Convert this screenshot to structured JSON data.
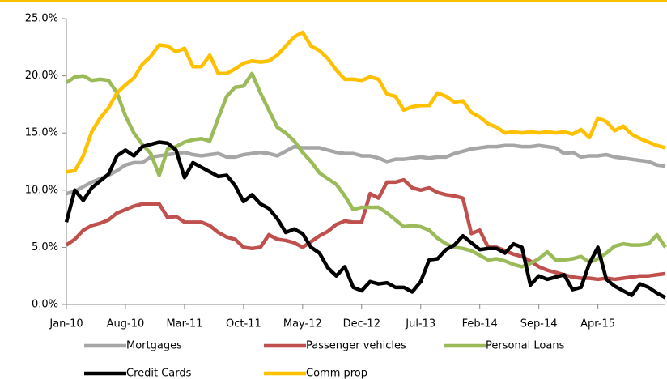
{
  "chart_data": {
    "type": "line",
    "categories": [
      "Jan-10",
      null,
      null,
      null,
      null,
      null,
      null,
      "Aug-10",
      null,
      null,
      null,
      null,
      null,
      null,
      "Mar-11",
      null,
      null,
      null,
      null,
      null,
      null,
      "Oct-11",
      null,
      null,
      null,
      null,
      null,
      null,
      "May-12",
      null,
      null,
      null,
      null,
      null,
      null,
      "Dec-12",
      null,
      null,
      null,
      null,
      null,
      null,
      "Jul-13",
      null,
      null,
      null,
      null,
      null,
      null,
      "Feb-14",
      null,
      null,
      null,
      null,
      null,
      null,
      "Sep-14",
      null,
      null,
      null,
      null,
      null,
      null,
      "Apr-15",
      null,
      null,
      null,
      null,
      null,
      null,
      null,
      null
    ],
    "ylim": [
      0,
      25
    ],
    "yticks": [
      {
        "value": 0,
        "label": "0.0%"
      },
      {
        "value": 5,
        "label": "5.0%"
      },
      {
        "value": 10,
        "label": "10.0%"
      },
      {
        "value": 15,
        "label": "15.0%"
      },
      {
        "value": 20,
        "label": "20.0%"
      },
      {
        "value": 25,
        "label": "25.0%"
      }
    ],
    "series": [
      {
        "name": "Mortgages",
        "color": "#a6a6a6",
        "values": [
          9.7,
          9.9,
          10.3,
          10.7,
          11.0,
          11.3,
          11.7,
          12.2,
          12.4,
          12.4,
          12.9,
          13.0,
          13.1,
          13.2,
          13.3,
          13.1,
          13.0,
          13.1,
          13.2,
          12.9,
          12.9,
          13.1,
          13.2,
          13.3,
          13.2,
          13.0,
          13.4,
          13.8,
          13.7,
          13.7,
          13.7,
          13.5,
          13.3,
          13.2,
          13.2,
          13.0,
          13.0,
          12.8,
          12.5,
          12.7,
          12.7,
          12.8,
          12.9,
          12.8,
          12.9,
          12.9,
          13.2,
          13.4,
          13.6,
          13.7,
          13.8,
          13.8,
          13.9,
          13.9,
          13.8,
          13.8,
          13.9,
          13.8,
          13.7,
          13.2,
          13.3,
          12.9,
          13.0,
          13.0,
          13.1,
          12.9,
          12.8,
          12.7,
          12.6,
          12.5,
          12.2,
          12.1
        ]
      },
      {
        "name": "Passenger vehicles",
        "color": "#c0504d",
        "values": [
          5.2,
          5.7,
          6.5,
          6.9,
          7.1,
          7.4,
          8.0,
          8.3,
          8.6,
          8.8,
          8.8,
          8.8,
          7.6,
          7.7,
          7.2,
          7.2,
          7.2,
          6.9,
          6.3,
          5.9,
          5.7,
          5.0,
          4.9,
          5.0,
          6.1,
          5.7,
          5.6,
          5.4,
          5.0,
          5.5,
          6.0,
          6.4,
          7.0,
          7.3,
          7.2,
          7.2,
          9.7,
          9.3,
          10.7,
          10.7,
          10.9,
          10.2,
          10.0,
          10.2,
          9.8,
          9.6,
          9.5,
          9.3,
          6.2,
          6.5,
          5.0,
          5.0,
          4.7,
          4.4,
          4.2,
          3.8,
          3.3,
          3.0,
          2.8,
          2.6,
          2.4,
          2.3,
          2.3,
          2.2,
          2.3,
          2.2,
          2.3,
          2.4,
          2.5,
          2.5,
          2.6,
          2.7
        ]
      },
      {
        "name": "Personal Loans",
        "color": "#9bbb59",
        "values": [
          19.4,
          19.9,
          20.0,
          19.6,
          19.7,
          19.6,
          18.5,
          16.5,
          15.0,
          14.0,
          13.2,
          11.3,
          13.6,
          13.8,
          14.2,
          14.4,
          14.5,
          14.3,
          16.3,
          18.2,
          19.0,
          19.1,
          20.2,
          18.5,
          17.0,
          15.5,
          15.0,
          14.3,
          13.3,
          12.5,
          11.5,
          11.0,
          10.5,
          9.5,
          8.3,
          8.5,
          8.5,
          8.5,
          8.0,
          7.4,
          6.8,
          6.9,
          6.8,
          6.5,
          5.8,
          5.3,
          5.0,
          4.9,
          4.7,
          4.3,
          3.9,
          4.0,
          3.8,
          3.5,
          3.3,
          3.6,
          4.0,
          4.6,
          3.9,
          3.9,
          4.0,
          4.2,
          3.7,
          4.0,
          4.5,
          5.1,
          5.3,
          5.2,
          5.2,
          5.3,
          6.1,
          5.0
        ]
      },
      {
        "name": "Credit Cards",
        "color": "#000000",
        "values": [
          7.2,
          10.0,
          9.1,
          10.2,
          10.8,
          11.4,
          13.0,
          13.5,
          13.0,
          13.8,
          14.0,
          14.2,
          14.1,
          13.5,
          11.1,
          12.4,
          12.0,
          11.6,
          11.2,
          11.3,
          10.4,
          9.0,
          9.6,
          8.8,
          8.4,
          7.5,
          6.3,
          6.6,
          6.2,
          5.0,
          4.5,
          3.2,
          2.5,
          3.3,
          1.5,
          1.2,
          2.0,
          1.8,
          1.9,
          1.5,
          1.5,
          1.1,
          2.0,
          3.9,
          4.0,
          4.8,
          5.2,
          6.0,
          5.4,
          4.8,
          4.9,
          4.9,
          4.5,
          5.3,
          5.0,
          1.7,
          2.5,
          2.2,
          2.4,
          2.6,
          1.3,
          1.5,
          3.6,
          5.0,
          2.2,
          1.6,
          1.2,
          0.8,
          1.8,
          1.5,
          1.0,
          0.6
        ]
      },
      {
        "name": "Comm prop",
        "color": "#ffc000",
        "values": [
          11.6,
          11.7,
          13.0,
          15.1,
          16.3,
          17.2,
          18.5,
          19.2,
          19.8,
          21.0,
          21.7,
          22.7,
          22.6,
          22.1,
          22.4,
          20.8,
          20.8,
          21.8,
          20.2,
          20.2,
          20.6,
          21.1,
          21.3,
          21.2,
          21.3,
          21.8,
          22.6,
          23.4,
          23.8,
          22.6,
          22.2,
          21.5,
          20.5,
          19.7,
          19.7,
          19.6,
          19.9,
          19.7,
          18.4,
          18.2,
          17.0,
          17.3,
          17.4,
          17.4,
          18.5,
          18.2,
          17.7,
          17.8,
          16.8,
          16.4,
          15.8,
          15.5,
          15.0,
          15.1,
          15.0,
          15.1,
          15.0,
          15.1,
          15.0,
          15.1,
          14.9,
          15.3,
          14.6,
          16.3,
          16.0,
          15.2,
          15.6,
          14.9,
          14.5,
          14.2,
          13.9,
          13.7
        ]
      }
    ]
  }
}
